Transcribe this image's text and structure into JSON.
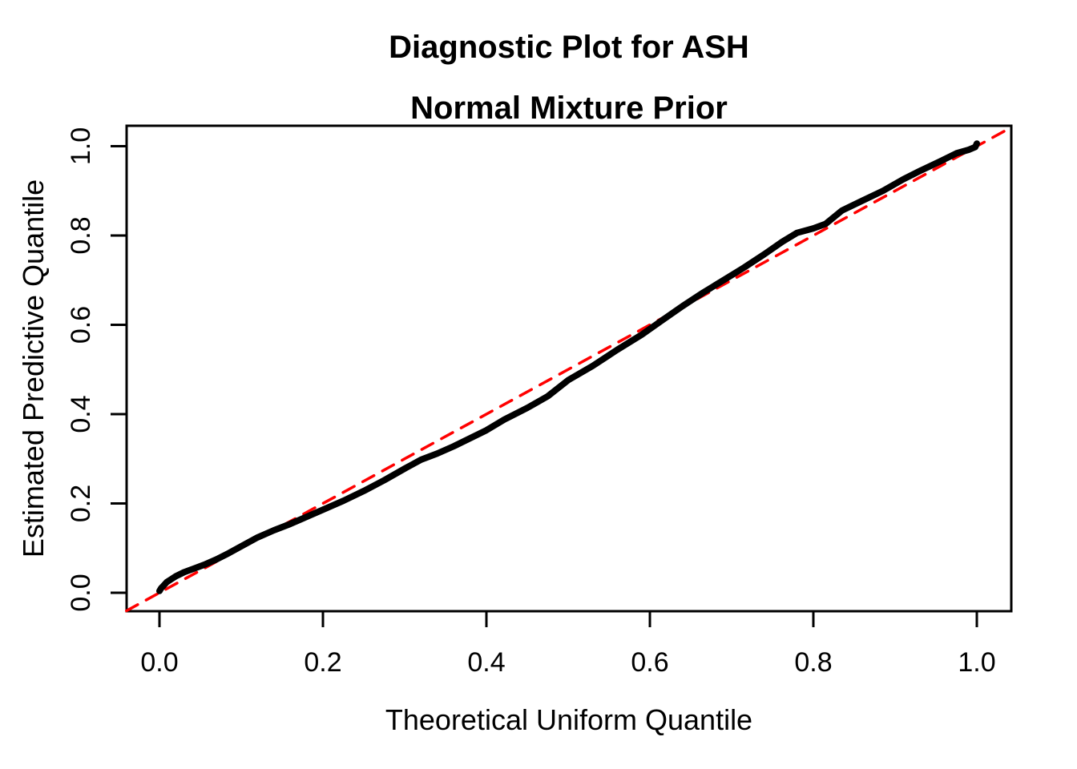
{
  "page": {
    "background": "#ffffff",
    "text_color": "#000000"
  },
  "chart_data": {
    "type": "line",
    "title_lines": [
      "Diagnostic Plot for ASH",
      "Normal Mixture Prior"
    ],
    "title_text": "Diagnostic Plot for ASH\nNormal Mixture Prior",
    "xlabel": "Theoretical Uniform Quantile",
    "ylabel": "Estimated Predictive Quantile",
    "xlim": [
      -0.0404,
      1.0422
    ],
    "ylim": [
      -0.0413,
      1.0457
    ],
    "grid": false,
    "legend_position": "none",
    "axis_color": "#000000",
    "background_color": "#ffffff",
    "x_tick_values": [
      0.0,
      0.2,
      0.4,
      0.6,
      0.8,
      1.0
    ],
    "x_tick_labels": [
      "0.0",
      "0.2",
      "0.4",
      "0.6",
      "0.8",
      "1.0"
    ],
    "y_tick_values": [
      0.0,
      0.2,
      0.4,
      0.6,
      0.8,
      1.0
    ],
    "y_tick_labels": [
      "0.0",
      "0.2",
      "0.4",
      "0.6",
      "0.8",
      "1.0"
    ],
    "series": [
      {
        "name": "estimated-predictive-quantile-curve",
        "color": "#000000",
        "dash": "solid",
        "stroke_width": 8,
        "points": [
          [
            0.0,
            0.004
          ],
          [
            0.002,
            0.01
          ],
          [
            0.005,
            0.016
          ],
          [
            0.009,
            0.024
          ],
          [
            0.014,
            0.03
          ],
          [
            0.02,
            0.037
          ],
          [
            0.03,
            0.046
          ],
          [
            0.042,
            0.054
          ],
          [
            0.055,
            0.063
          ],
          [
            0.07,
            0.075
          ],
          [
            0.085,
            0.089
          ],
          [
            0.1,
            0.104
          ],
          [
            0.12,
            0.124
          ],
          [
            0.14,
            0.14
          ],
          [
            0.16,
            0.154
          ],
          [
            0.18,
            0.17
          ],
          [
            0.2,
            0.186
          ],
          [
            0.225,
            0.206
          ],
          [
            0.25,
            0.228
          ],
          [
            0.275,
            0.252
          ],
          [
            0.3,
            0.278
          ],
          [
            0.32,
            0.298
          ],
          [
            0.34,
            0.312
          ],
          [
            0.36,
            0.328
          ],
          [
            0.38,
            0.346
          ],
          [
            0.4,
            0.364
          ],
          [
            0.422,
            0.388
          ],
          [
            0.45,
            0.414
          ],
          [
            0.475,
            0.44
          ],
          [
            0.5,
            0.476
          ],
          [
            0.53,
            0.508
          ],
          [
            0.56,
            0.544
          ],
          [
            0.59,
            0.578
          ],
          [
            0.615,
            0.61
          ],
          [
            0.64,
            0.642
          ],
          [
            0.665,
            0.672
          ],
          [
            0.69,
            0.7
          ],
          [
            0.715,
            0.728
          ],
          [
            0.74,
            0.758
          ],
          [
            0.762,
            0.786
          ],
          [
            0.78,
            0.806
          ],
          [
            0.8,
            0.816
          ],
          [
            0.815,
            0.826
          ],
          [
            0.835,
            0.856
          ],
          [
            0.86,
            0.878
          ],
          [
            0.885,
            0.9
          ],
          [
            0.91,
            0.926
          ],
          [
            0.932,
            0.946
          ],
          [
            0.955,
            0.966
          ],
          [
            0.975,
            0.984
          ],
          [
            0.99,
            0.992
          ],
          [
            0.998,
            0.998
          ],
          [
            1.0,
            1.006
          ]
        ]
      },
      {
        "name": "reference-diagonal-y-equals-x",
        "color": "#ff0000",
        "dash": "dashed",
        "stroke_width": 3.5,
        "points": [
          [
            -0.0404,
            -0.0404
          ],
          [
            1.0422,
            1.0422
          ]
        ]
      }
    ]
  }
}
